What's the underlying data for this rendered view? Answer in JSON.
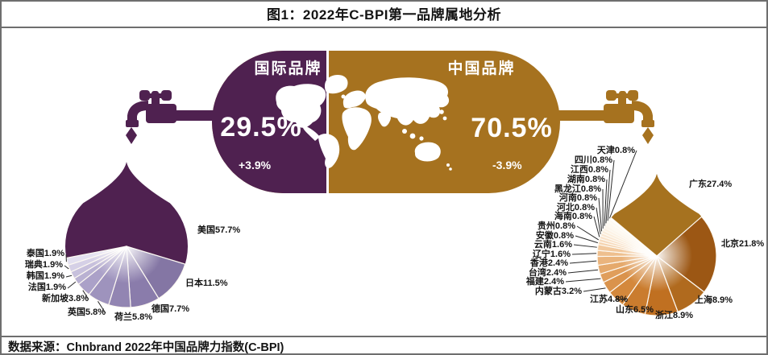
{
  "title": "图1：2022年C-BPI第一品牌属地分析",
  "source": "数据来源：Chnbrand 2022年中国品牌力指数(C-BPI)",
  "colors": {
    "international": "#4f2150",
    "china": "#a6721f",
    "frame": "#6e6e6e",
    "map": "#ffffff"
  },
  "capsule": {
    "international": {
      "label": "国际品牌",
      "share": "29.5%",
      "delta": "+3.9%"
    },
    "china": {
      "label": "中国品牌",
      "share": "70.5%",
      "delta": "-3.9%"
    }
  },
  "chart_data": [
    {
      "type": "pie",
      "name": "国际品牌",
      "unit": "%",
      "start_angle_deg": 259,
      "slices": [
        {
          "name": "美国",
          "value": 57.7
        },
        {
          "name": "日本",
          "value": 11.5
        },
        {
          "name": "德国",
          "value": 7.7
        },
        {
          "name": "荷兰",
          "value": 5.8
        },
        {
          "name": "英国",
          "value": 5.8
        },
        {
          "name": "新加坡",
          "value": 3.8
        },
        {
          "name": "法国",
          "value": 1.9
        },
        {
          "name": "韩国",
          "value": 1.9
        },
        {
          "name": "瑞典",
          "value": 1.9
        },
        {
          "name": "泰国",
          "value": 1.9
        }
      ],
      "palette": [
        "#4f2150",
        "#8476a4",
        "#8a7cab",
        "#9285b2",
        "#9e93bd",
        "#aba1c8",
        "#b9b1d2",
        "#c7c0dc",
        "#d5d0e6",
        "#e3e0f0"
      ]
    },
    {
      "type": "pie",
      "name": "中国品牌",
      "unit": "%",
      "start_angle_deg": 310,
      "slices": [
        {
          "name": "广东",
          "value": 27.4
        },
        {
          "name": "北京",
          "value": 21.8
        },
        {
          "name": "上海",
          "value": 8.9
        },
        {
          "name": "浙江",
          "value": 8.9
        },
        {
          "name": "山东",
          "value": 6.5
        },
        {
          "name": "江苏",
          "value": 4.8
        },
        {
          "name": "内蒙古",
          "value": 3.2
        },
        {
          "name": "福建",
          "value": 2.4
        },
        {
          "name": "台湾",
          "value": 2.4
        },
        {
          "name": "香港",
          "value": 2.4
        },
        {
          "name": "辽宁",
          "value": 1.6
        },
        {
          "name": "云南",
          "value": 1.6
        },
        {
          "name": "安徽",
          "value": 0.8
        },
        {
          "name": "贵州",
          "value": 0.8
        },
        {
          "name": "海南",
          "value": 0.8
        },
        {
          "name": "河北",
          "value": 0.8
        },
        {
          "name": "河南",
          "value": 0.8
        },
        {
          "name": "黑龙江",
          "value": 0.8
        },
        {
          "name": "湖南",
          "value": 0.8
        },
        {
          "name": "江西",
          "value": 0.8
        },
        {
          "name": "四川",
          "value": 0.8
        },
        {
          "name": "天津",
          "value": 0.8
        }
      ],
      "palette": [
        "#a6721f",
        "#9c5714",
        "#b06a1e",
        "#c07021",
        "#ca7c2e",
        "#d4883c",
        "#da934c",
        "#e09e5c",
        "#e5a96c",
        "#eab47d",
        "#eebf8e",
        "#f2c99e",
        "#f5d2ae",
        "#f7dabc",
        "#f9e1c8",
        "#fae7d2",
        "#fcedda",
        "#fdf2e4",
        "#fdf6ec",
        "#fef9f1",
        "#fefcf6",
        "#fffefb"
      ]
    }
  ]
}
